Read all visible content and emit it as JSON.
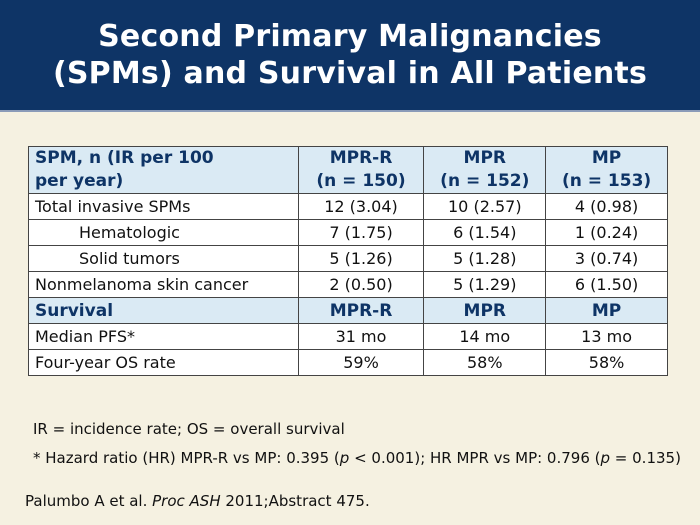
{
  "title": {
    "line1": "Second Primary Malignancies",
    "line2": "(SPMs) and Survival in All Patients"
  },
  "table": {
    "header": {
      "col0": "SPM, n (IR per 100 per year)",
      "col0_line1": "SPM, n (IR per 100",
      "col0_line2": "per year)",
      "col1_line1": "MPR-R",
      "col1_line2": "(n = 150)",
      "col2_line1": "MPR",
      "col2_line2": "(n = 152)",
      "col3_line1": "MP",
      "col3_line2": "(n = 153)"
    },
    "rows": [
      {
        "label": "Total invasive SPMs",
        "mprr": "12 (3.04)",
        "mpr": "10 (2.57)",
        "mp": "4 (0.98)"
      },
      {
        "label": "Hematologic",
        "mprr": "7 (1.75)",
        "mpr": "6 (1.54)",
        "mp": "1 (0.24)"
      },
      {
        "label": "Solid tumors",
        "mprr": "5 (1.26)",
        "mpr": "5 (1.28)",
        "mp": "3 (0.74)"
      },
      {
        "label": "Nonmelanoma skin cancer",
        "mprr": "2 (0.50)",
        "mpr": "5 (1.29)",
        "mp": "6 (1.50)"
      }
    ],
    "survival_header": {
      "label": "Survival",
      "mprr": "MPR-R",
      "mpr": "MPR",
      "mp": "MP"
    },
    "survival_rows": [
      {
        "label": "Median PFS*",
        "mprr": "31 mo",
        "mpr": "14 mo",
        "mp": "13 mo"
      },
      {
        "label": "Four-year OS rate",
        "mprr": "59%",
        "mpr": "58%",
        "mp": "58%"
      }
    ]
  },
  "notes": {
    "abbrev": "IR = incidence rate; OS = overall survival",
    "footnote_a": "* Hazard ratio (HR) MPR-R vs MP: 0.395 (",
    "p1": "p",
    "footnote_b": " < 0.001); HR MPR vs MP: 0.796 (",
    "p2": "p",
    "footnote_c": " = 0.135)"
  },
  "citation": {
    "authors": "Palumbo A et al. ",
    "journal": "Proc ASH",
    "rest": " 2011;Abstract 475."
  },
  "colors": {
    "header_bg": "#0e3466",
    "page_bg": "#f5f1e1",
    "table_header_bg": "#daeaf4"
  }
}
